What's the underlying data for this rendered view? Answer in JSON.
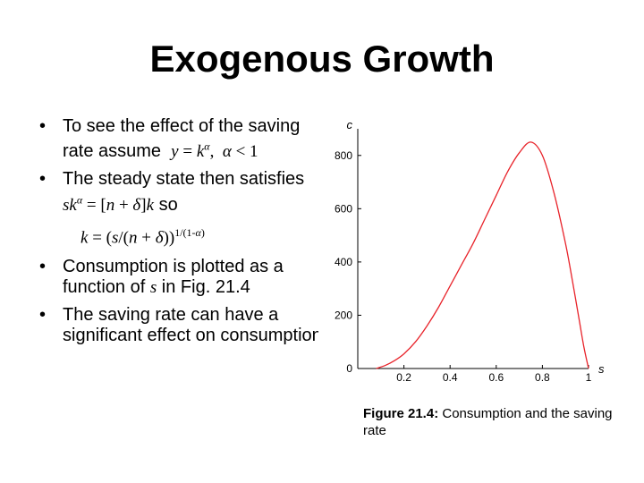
{
  "slide": {
    "title": "Exogenous Growth",
    "bullets": [
      {
        "text_before": "To see the effect of the saving rate assume",
        "math": "y = kα, α < 1"
      },
      {
        "text": "The steady state then satisfies sk",
        "math": "α = [n + δ]k so"
      },
      {
        "equation": "k = (s/(n + δ))1/(1-α)"
      },
      {
        "text": "Consumption is plotted as a function of s in Fig. 21.4"
      },
      {
        "text": "The saving rate can have a significant effect on consumption"
      }
    ],
    "caption": {
      "label": "Figure 21.4:",
      "text": "Consumption and the saving rate"
    }
  },
  "chart_data": {
    "type": "line",
    "ylabel": "c",
    "xlabel": "s",
    "xlim": [
      0,
      1
    ],
    "ylim": [
      0,
      900
    ],
    "x_ticks": [
      "0.2",
      "0.4",
      "0.6",
      "0.8",
      "1"
    ],
    "y_ticks": [
      "0",
      "200",
      "400",
      "600",
      "800"
    ],
    "series": [
      {
        "color": "#e8232a",
        "x": [
          0.08,
          0.12,
          0.16,
          0.2,
          0.25,
          0.3,
          0.35,
          0.4,
          0.45,
          0.5,
          0.55,
          0.6,
          0.65,
          0.7,
          0.75,
          0.8,
          0.85,
          0.9,
          0.93,
          0.96,
          0.98,
          1.0
        ],
        "y": [
          0,
          12,
          30,
          55,
          100,
          160,
          230,
          310,
          390,
          470,
          560,
          650,
          740,
          810,
          850,
          800,
          660,
          470,
          330,
          180,
          80,
          0
        ]
      }
    ],
    "grid": false,
    "legend": "none"
  }
}
